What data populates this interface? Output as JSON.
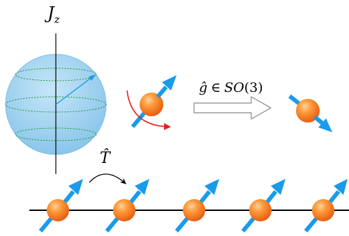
{
  "axis_label": {
    "main": "J",
    "subscript": "z"
  },
  "transform_label": {
    "operator": "ĝ",
    "relation": "∈",
    "group": "SO",
    "dimension": "(3)"
  },
  "translation_label": {
    "operator": "T̂"
  },
  "colors": {
    "sphere": "#9fd2f0",
    "sphere_edge": "#7bbde6",
    "latitude": "#1a9a2a",
    "spin_arrow": "#1a9bea",
    "ball": "#f47a18",
    "ball_highlight": "#ffc48a",
    "rotation_arrow": "#e52020",
    "hollow_arrow_stroke": "#888888",
    "chain_line": "#000000"
  },
  "chain": {
    "site_count": 5,
    "spin_orientation": "up-right"
  }
}
